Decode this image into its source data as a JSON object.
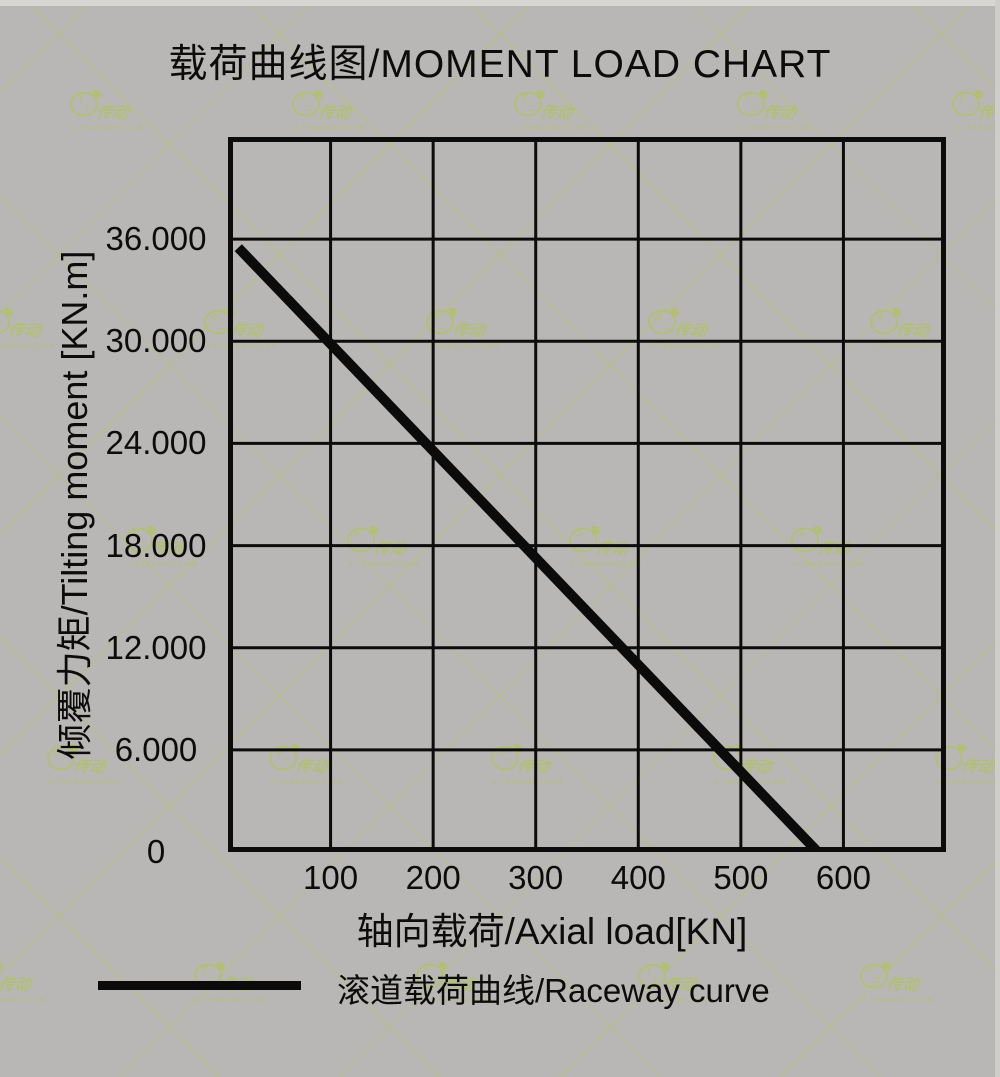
{
  "title": "载荷曲线图/MOMENT LOAD CHART",
  "chart_data": {
    "type": "line",
    "title": "载荷曲线图/MOMENT LOAD CHART",
    "xlabel": "轴向载荷/Axial load[KN]",
    "ylabel": "倾覆力矩/Tilting moment [KN.m]",
    "xlim": [
      0,
      700
    ],
    "ylim": [
      0,
      42
    ],
    "grid": true,
    "grid_divisions": [
      7,
      7
    ],
    "legend_position": "bottom-left",
    "x_ticks": [
      {
        "value": 100,
        "label": "100"
      },
      {
        "value": 200,
        "label": "200"
      },
      {
        "value": 300,
        "label": "300"
      },
      {
        "value": 400,
        "label": "400"
      },
      {
        "value": 500,
        "label": "500"
      },
      {
        "value": 600,
        "label": "600"
      }
    ],
    "y_ticks": [
      {
        "value": 0,
        "label": "0"
      },
      {
        "value": 6,
        "label": "6.000"
      },
      {
        "value": 12,
        "label": "12.000"
      },
      {
        "value": 18,
        "label": "18.000"
      },
      {
        "value": 24,
        "label": "24.000"
      },
      {
        "value": 30,
        "label": "30.000"
      },
      {
        "value": 36,
        "label": "36.000"
      }
    ],
    "series": [
      {
        "name": "滚道载荷曲线/Raceway curve",
        "points": [
          [
            10,
            35.5
          ],
          [
            575,
            0
          ]
        ]
      }
    ]
  },
  "legend": {
    "label": "滚道载荷曲线/Raceway curve"
  },
  "watermark": {
    "seal_top": "不",
    "seal_bottom": "二",
    "script_text": "传动",
    "subtext": "U-TRANSMISSION"
  },
  "colors": {
    "background": "#b9b7b5",
    "ink": "#0c0c0c",
    "curve": "#0b0b0b",
    "watermark_green": "#aec551"
  }
}
